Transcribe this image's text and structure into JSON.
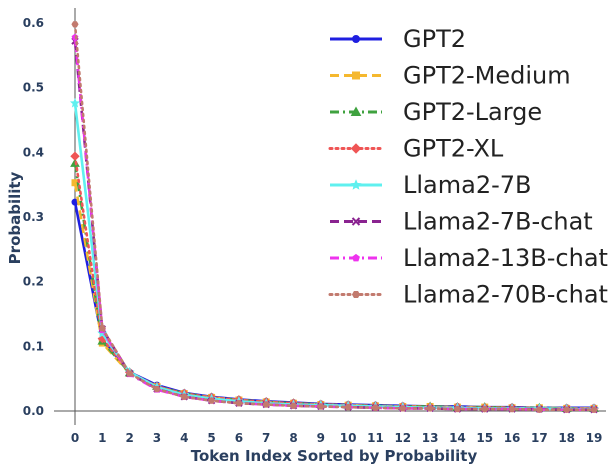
{
  "chart_data": {
    "type": "line",
    "title": "",
    "xlabel": "Token Index Sorted by Probability",
    "ylabel": "Probability",
    "x": [
      0,
      1,
      2,
      3,
      4,
      5,
      6,
      7,
      8,
      9,
      10,
      11,
      12,
      13,
      14,
      15,
      16,
      17,
      18,
      19
    ],
    "xlim": [
      -0.6,
      19.4
    ],
    "ylim": [
      -0.01,
      0.63
    ],
    "xticks": [
      "0",
      "1",
      "2",
      "3",
      "4",
      "5",
      "6",
      "7",
      "8",
      "9",
      "10",
      "11",
      "12",
      "13",
      "14",
      "15",
      "16",
      "17",
      "18",
      "19"
    ],
    "yticks": [
      0.0,
      0.1,
      0.2,
      0.3,
      0.4,
      0.5,
      0.6
    ],
    "ytick_labels": [
      "0.0",
      "0.1",
      "0.2",
      "0.3",
      "0.4",
      "0.5",
      "0.6"
    ],
    "grid": false,
    "legend_position": "top-right",
    "series": [
      {
        "name": "GPT2",
        "color": "#1f1fe0",
        "dash": "solid",
        "marker": "circle",
        "values": [
          0.323,
          0.11,
          0.06,
          0.04,
          0.028,
          0.022,
          0.018,
          0.015,
          0.013,
          0.011,
          0.01,
          0.009,
          0.008,
          0.007,
          0.007,
          0.006,
          0.006,
          0.005,
          0.005,
          0.005
        ]
      },
      {
        "name": "GPT2-Medium",
        "color": "#f5b82e",
        "dash": "dash",
        "marker": "square",
        "values": [
          0.353,
          0.105,
          0.058,
          0.038,
          0.027,
          0.021,
          0.017,
          0.014,
          0.012,
          0.01,
          0.009,
          0.008,
          0.007,
          0.007,
          0.006,
          0.006,
          0.005,
          0.005,
          0.004,
          0.004
        ]
      },
      {
        "name": "GPT2-Large",
        "color": "#3fa23f",
        "dash": "dashdot",
        "marker": "triangle",
        "values": [
          0.383,
          0.108,
          0.059,
          0.038,
          0.027,
          0.021,
          0.017,
          0.014,
          0.012,
          0.01,
          0.009,
          0.008,
          0.007,
          0.007,
          0.006,
          0.006,
          0.005,
          0.005,
          0.004,
          0.004
        ]
      },
      {
        "name": "GPT2-XL",
        "color": "#ef5555",
        "dash": "dot",
        "marker": "diamond",
        "values": [
          0.394,
          0.112,
          0.06,
          0.038,
          0.027,
          0.021,
          0.017,
          0.014,
          0.012,
          0.01,
          0.009,
          0.008,
          0.007,
          0.006,
          0.006,
          0.005,
          0.005,
          0.004,
          0.004,
          0.004
        ]
      },
      {
        "name": "Llama2-7B",
        "color": "#5ff0ef",
        "dash": "solid",
        "marker": "star",
        "values": [
          0.476,
          0.12,
          0.06,
          0.037,
          0.025,
          0.019,
          0.015,
          0.012,
          0.01,
          0.009,
          0.008,
          0.007,
          0.006,
          0.005,
          0.005,
          0.004,
          0.004,
          0.004,
          0.003,
          0.003
        ]
      },
      {
        "name": "Llama2-7B-chat",
        "color": "#8a2390",
        "dash": "dash",
        "marker": "x",
        "values": [
          0.572,
          0.127,
          0.058,
          0.034,
          0.022,
          0.016,
          0.012,
          0.01,
          0.008,
          0.007,
          0.006,
          0.005,
          0.004,
          0.004,
          0.003,
          0.003,
          0.003,
          0.003,
          0.002,
          0.002
        ]
      },
      {
        "name": "Llama2-13B-chat",
        "color": "#ee33ee",
        "dash": "dashdot",
        "marker": "pentagon",
        "values": [
          0.578,
          0.125,
          0.057,
          0.033,
          0.022,
          0.016,
          0.012,
          0.01,
          0.008,
          0.007,
          0.006,
          0.005,
          0.004,
          0.004,
          0.003,
          0.003,
          0.003,
          0.002,
          0.002,
          0.002
        ]
      },
      {
        "name": "Llama2-70B-chat",
        "color": "#c27a6e",
        "dash": "dot",
        "marker": "hexagon",
        "values": [
          0.598,
          0.128,
          0.058,
          0.034,
          0.022,
          0.016,
          0.012,
          0.01,
          0.008,
          0.007,
          0.006,
          0.005,
          0.004,
          0.004,
          0.003,
          0.003,
          0.003,
          0.002,
          0.002,
          0.002
        ]
      }
    ]
  }
}
